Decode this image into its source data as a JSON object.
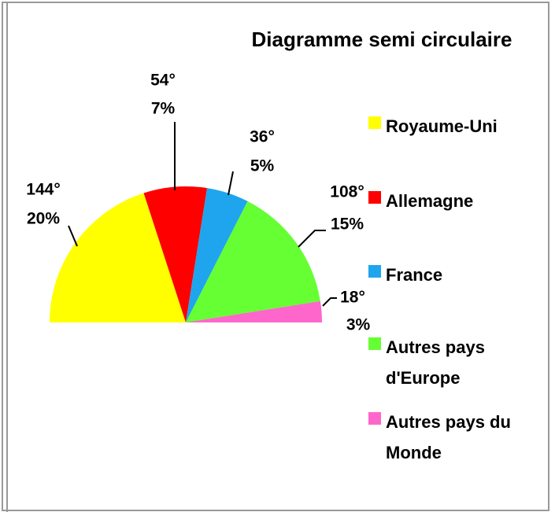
{
  "chart_data": {
    "type": "semi-pie",
    "title": "Diagramme semi circulaire",
    "categories": [
      "Royaume-Uni",
      "Allemagne",
      "France",
      "Autres pays d'Europe",
      "Autres pays du Monde"
    ],
    "values": [
      144,
      54,
      36,
      108,
      18
    ],
    "value_labels": [
      "144°",
      "54°",
      "36°",
      "108°",
      "18°"
    ],
    "percentages": [
      20,
      7,
      5,
      15,
      3
    ],
    "percentage_labels": [
      "20%",
      "7%",
      "5%",
      "15%",
      "3%"
    ],
    "colors": [
      "#ffff00",
      "#ff0000",
      "#1ea5ee",
      "#66ff33",
      "#ff66cc"
    ],
    "legend": "right"
  }
}
